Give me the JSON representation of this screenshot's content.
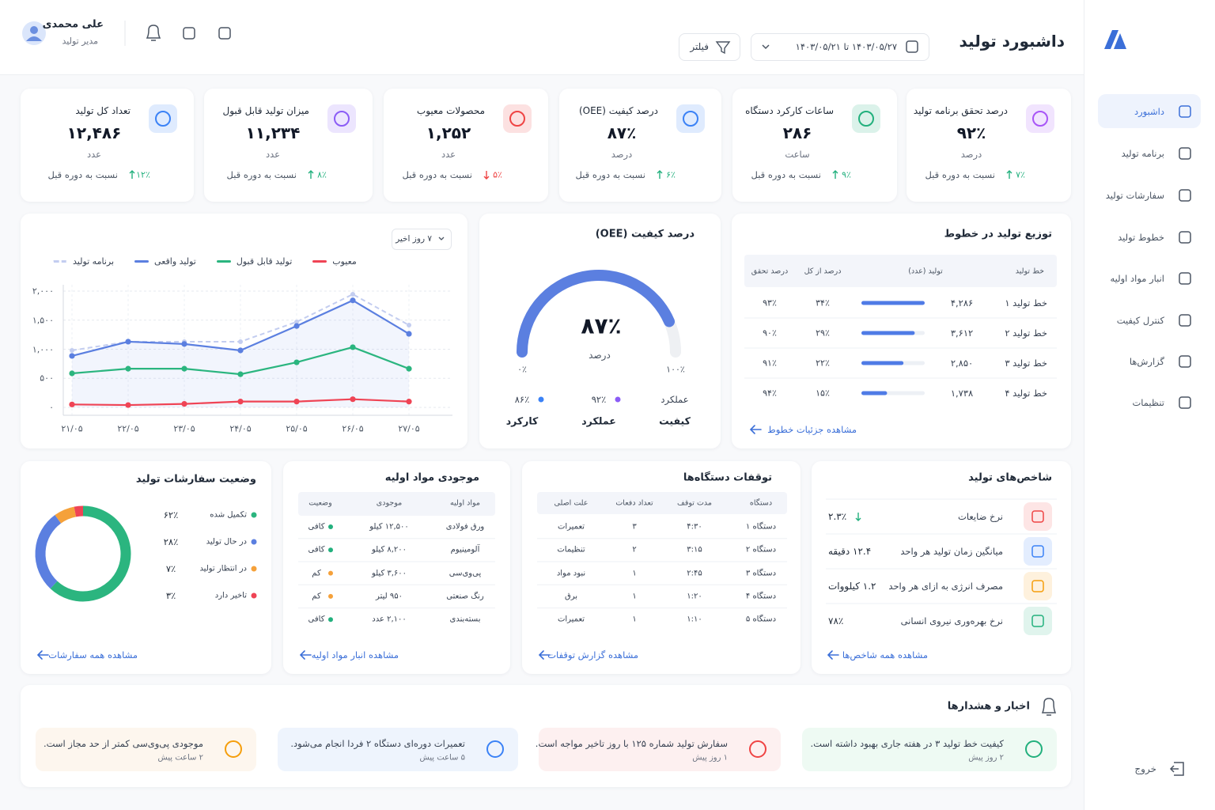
{
  "sidebar": {
    "items": [
      "داشبورد",
      "برنامه تولید",
      "سفارشات تولید",
      "خطوط تولید",
      "انبار مواد اولیه",
      "کنترل کیفیت",
      "گزارش‌ها",
      "تنظیمات"
    ],
    "active": 0,
    "logout": "خروج"
  },
  "header": {
    "title": "داشبورد تولید",
    "date_range": "۱۴۰۳/۰۵/۲۷ تا ۱۴۰۳/۰۵/۲۱",
    "filter": "فیلتر",
    "user_name": "علی محمدی",
    "user_role": "مدیر تولید"
  },
  "kpis": [
    {
      "title": "درصد تحقق برنامه تولید",
      "value": "۹۲٪",
      "unit": "درصد",
      "change": "۷٪",
      "trend": "up",
      "note": "نسبت به دوره قبل",
      "icon_color": "#a855f7"
    },
    {
      "title": "ساعات کارکرد دستگاه",
      "value": "۲۸۶",
      "unit": "ساعت",
      "change": "۹٪",
      "trend": "up",
      "note": "نسبت به دوره قبل",
      "icon_color": "#22b07d"
    },
    {
      "title": "درصد کیفیت (OEE)",
      "value": "۸۷٪",
      "unit": "درصد",
      "change": "۶٪",
      "trend": "up",
      "note": "نسبت به دوره قبل",
      "icon_color": "#3b82f6"
    },
    {
      "title": "محصولات معیوب",
      "value": "۱,۲۵۲",
      "unit": "عدد",
      "change": "۵٪",
      "trend": "down",
      "note": "نسبت به دوره قبل",
      "icon_color": "#ef4444"
    },
    {
      "title": "میزان تولید قابل قبول",
      "value": "۱۱,۲۳۴",
      "unit": "عدد",
      "change": "۸٪",
      "trend": "up",
      "note": "نسبت به دوره قبل",
      "icon_color": "#8b5cf6"
    },
    {
      "title": "تعداد کل تولید",
      "value": "۱۲,۴۸۶",
      "unit": "عدد",
      "change": "۱۲٪",
      "trend": "up",
      "note": "نسبت به دوره قبل",
      "icon_color": "#3b82f6"
    }
  ],
  "chart_data": [
    {
      "type": "line",
      "range_selector": "۷ روز اخیر",
      "categories": [
        "۲۱/۰۵",
        "۲۲/۰۵",
        "۲۳/۰۵",
        "۲۴/۰۵",
        "۲۵/۰۵",
        "۲۶/۰۵",
        "۲۷/۰۵"
      ],
      "series": [
        {
          "name": "برنامه تولید",
          "color": "#c3cdf0",
          "dashed": true,
          "values": [
            980,
            1130,
            1130,
            1130,
            1470,
            1945,
            1415
          ]
        },
        {
          "name": "تولید واقعی",
          "color": "#5b7fe0",
          "area": true,
          "values": [
            885,
            1130,
            1090,
            980,
            1400,
            1840,
            1265
          ]
        },
        {
          "name": "تولید قابل قبول",
          "color": "#2bb57f",
          "values": [
            585,
            665,
            665,
            570,
            775,
            1035,
            665
          ]
        },
        {
          "name": "معیوب",
          "color": "#ef4455",
          "values": [
            50,
            40,
            60,
            100,
            100,
            140,
            100
          ]
        }
      ],
      "ylim": [
        0,
        2000
      ],
      "yticks": [
        {
          "value": 0,
          "label": "۰"
        },
        {
          "value": 500,
          "label": "۵۰۰"
        },
        {
          "value": 1000,
          "label": "۱,۰۰۰"
        },
        {
          "value": 1500,
          "label": "۱,۵۰۰"
        },
        {
          "value": 2000,
          "label": "۲,۰۰۰"
        }
      ],
      "grid": true
    },
    {
      "type": "gauge",
      "title": "درصد کیفیت (OEE)",
      "values": [
        87
      ],
      "value_labels": [
        "۸۷٪"
      ],
      "unit": "درصد",
      "color": "#5b7fe0",
      "ylim": [
        0,
        100
      ],
      "ticks": [
        {
          "value": 0,
          "label": "۰٪"
        },
        {
          "value": 100,
          "label": "۱۰۰٪"
        }
      ],
      "breakdown_top": [
        "عملکرد",
        "۹۲٪",
        "۸۶٪"
      ],
      "breakdown_bottom": [
        "کیفیت",
        "عملکرد",
        "کارکرد"
      ],
      "breakdown_dot_colors": [
        "#8b5cf6",
        "#3b82f6"
      ]
    },
    {
      "type": "pie",
      "donut": true,
      "title": "وضعیت سفارشات تولید",
      "categories": [
        "تکمیل شده",
        "در حال تولید",
        "در انتظار تولید",
        "تاخیر دارد"
      ],
      "values": [
        62,
        28,
        7,
        3
      ],
      "value_labels": [
        "۶۲٪",
        "۲۸٪",
        "۷٪",
        "۳٪"
      ],
      "colors": [
        "#2bb57f",
        "#5b7fe0",
        "#f5a13a",
        "#ef4455"
      ],
      "link": "مشاهده همه سفارشات"
    }
  ],
  "production_lines": {
    "title": "توزیع تولید در خطوط",
    "headers": [
      "خط تولید",
      "تولید (عدد)",
      "درصد از کل",
      "درصد تحقق"
    ],
    "rows": [
      {
        "name": "خط تولید ۱",
        "production": {
          "value": 4286,
          "label": "۴,۲۸۶"
        },
        "share": "۳۴٪",
        "fulfillment": "۹۳٪"
      },
      {
        "name": "خط تولید ۲",
        "production": {
          "value": 3612,
          "label": "۳,۶۱۲"
        },
        "share": "۲۹٪",
        "fulfillment": "۹۰٪"
      },
      {
        "name": "خط تولید ۳",
        "production": {
          "value": 2850,
          "label": "۲,۸۵۰"
        },
        "share": "۲۲٪",
        "fulfillment": "۹۱٪"
      },
      {
        "name": "خط تولید ۴",
        "production": {
          "value": 1738,
          "label": "۱,۷۳۸"
        },
        "share": "۱۵٪",
        "fulfillment": "۹۴٪"
      }
    ],
    "bar_color": "#4f7be6",
    "link": "مشاهده جزئیات خطوط"
  },
  "indicators": {
    "title": "شاخص‌های تولید",
    "items": [
      {
        "label": "نرخ ضایعات",
        "value": "۲.۳٪",
        "trend": "down",
        "color": "#ef4444"
      },
      {
        "label": "میانگین زمان تولید هر واحد",
        "value": "۱۲.۴ دقیقه",
        "color": "#3b82f6"
      },
      {
        "label": "مصرف انرژی به ازای هر واحد",
        "value": "۱.۲ کیلووات",
        "color": "#f59e0b"
      },
      {
        "label": "نرخ بهره‌وری نیروی انسانی",
        "value": "۷۸٪",
        "color": "#22b07d"
      }
    ],
    "link": "مشاهده همه شاخص‌ها"
  },
  "machine_stops": {
    "title": "توقفات دستگاه‌ها",
    "headers": [
      "دستگاه",
      "مدت توقف",
      "تعداد دفعات",
      "علت اصلی"
    ],
    "rows": [
      [
        "دستگاه ۱",
        "۴:۳۰",
        "۳",
        "تعمیرات"
      ],
      [
        "دستگاه ۲",
        "۳:۱۵",
        "۲",
        "تنظیمات"
      ],
      [
        "دستگاه ۳",
        "۲:۴۵",
        "۱",
        "نبود مواد"
      ],
      [
        "دستگاه ۴",
        "۱:۲۰",
        "۱",
        "برق"
      ],
      [
        "دستگاه ۵",
        "۱:۱۰",
        "۱",
        "تعمیرات"
      ]
    ],
    "link": "مشاهده گزارش توقفات"
  },
  "materials": {
    "title": "موجودی مواد اولیه",
    "headers": [
      "مواد اولیه",
      "موجودی",
      "وضعیت"
    ],
    "rows": [
      {
        "cells": [
          "ورق فولادی",
          "۱۲,۵۰۰ کیلو",
          "کافی"
        ],
        "status_color": "#22b07d"
      },
      {
        "cells": [
          "آلومینیوم",
          "۸,۲۰۰ کیلو",
          "کافی"
        ],
        "status_color": "#22b07d"
      },
      {
        "cells": [
          "پی‌وی‌سی",
          "۳,۶۰۰ کیلو",
          "کم"
        ],
        "status_color": "#f5a13a"
      },
      {
        "cells": [
          "رنگ صنعتی",
          "۹۵۰ لیتر",
          "کم"
        ],
        "status_color": "#f5a13a"
      },
      {
        "cells": [
          "بسته‌بندی",
          "۲,۱۰۰ عدد",
          "کافی"
        ],
        "status_color": "#22b07d"
      }
    ],
    "link": "مشاهده انبار مواد اولیه"
  },
  "alerts": {
    "title": "اخبار و هشدارها",
    "items": [
      {
        "kind": "success",
        "text": "کیفیت خط تولید ۳ در هفته جاری بهبود داشته است.",
        "time": "۲ روز پیش"
      },
      {
        "kind": "danger",
        "text": "سفارش تولید شماره ۱۲۵ با روز تاخیر مواجه است.",
        "time": "۱ روز پیش"
      },
      {
        "kind": "info",
        "text": "تعمیرات دوره‌ای دستگاه ۲ فردا انجام می‌شود.",
        "time": "۵ ساعت پیش"
      },
      {
        "kind": "warning",
        "text": "موجودی پی‌وی‌سی کمتر از حد مجاز است.",
        "time": "۲ ساعت پیش"
      }
    ]
  }
}
